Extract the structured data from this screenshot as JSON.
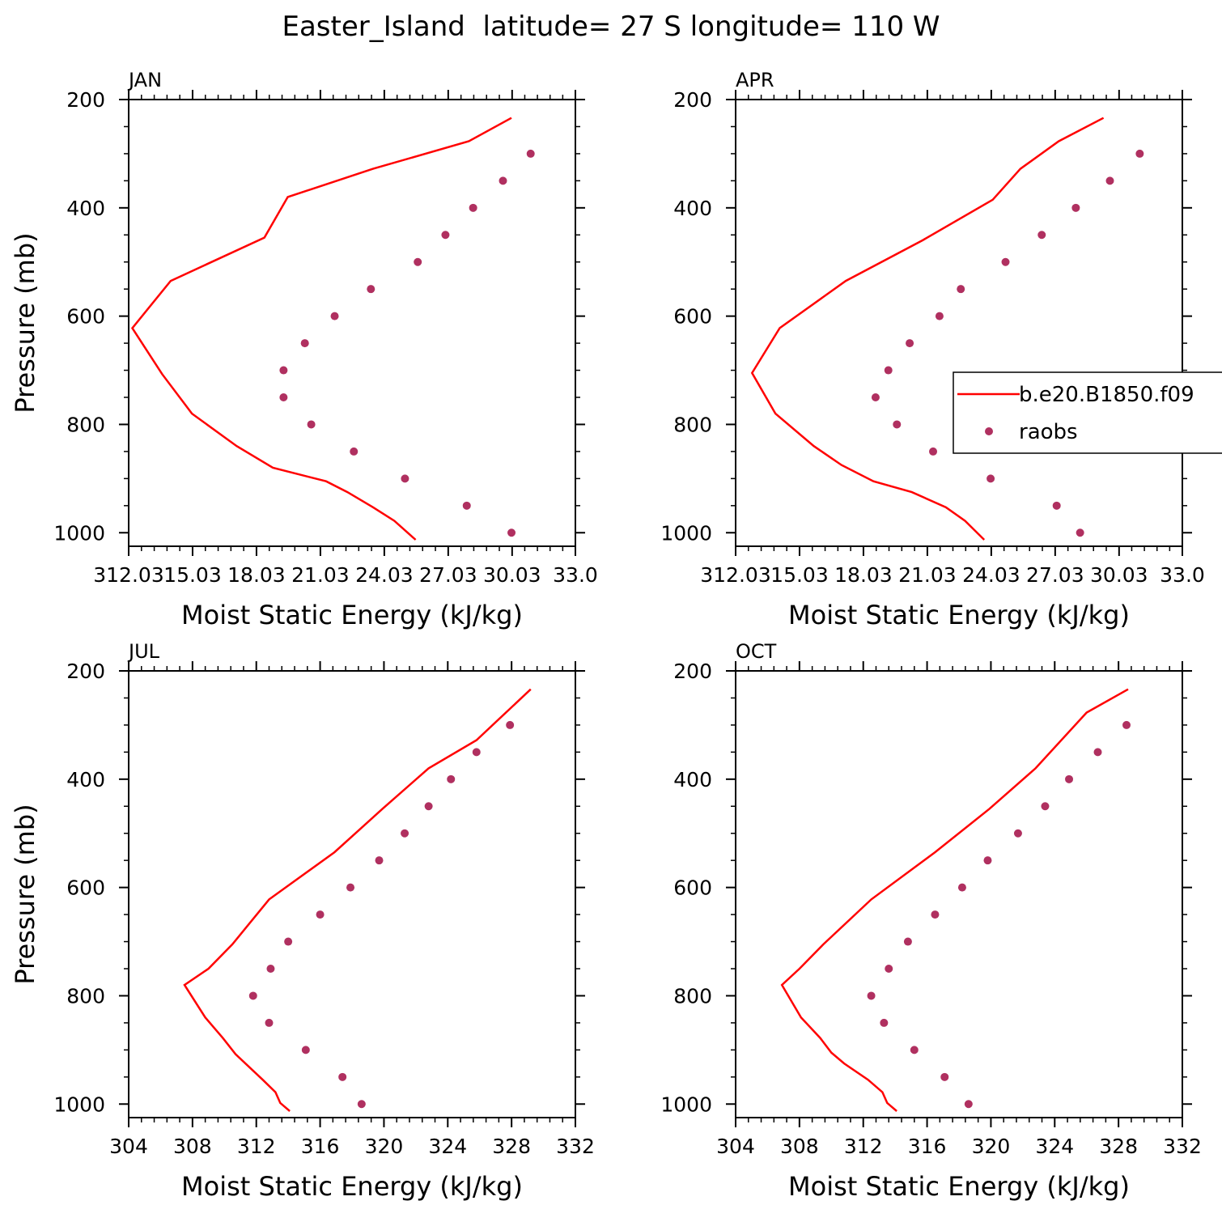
{
  "figure_title": "Easter_Island  latitude= 27 S longitude= 110 W",
  "legend": {
    "model_label": "b.e20.B1850.f09",
    "obs_label": "raobs",
    "line_color": "#ff0000",
    "marker_color": "#b03060"
  },
  "chart_data": [
    {
      "type": "line",
      "panel_title": "JAN",
      "xlabel": "Moist Static Energy (kJ/kg)",
      "ylabel": "Pressure (mb)",
      "xlim": [
        312.03,
        333.0
      ],
      "ylim": [
        1025,
        200
      ],
      "x_ticks": [
        312.03,
        315.03,
        318.03,
        321.03,
        324.03,
        327.03,
        330.03,
        333.0
      ],
      "x_tick_labels": [
        "312.03",
        "15.03",
        "18.03",
        "21.03",
        "24.03",
        "27.03",
        "30.03",
        "33.0"
      ],
      "y_ticks": [
        200,
        400,
        600,
        800,
        1000
      ],
      "y_tick_labels": [
        "200",
        "400",
        "600",
        "800",
        "1000"
      ],
      "series": [
        {
          "name": "b.e20.B1850.f09",
          "kind": "line",
          "x": [
            325.5,
            324.5,
            323.5,
            322.3,
            321.3,
            318.8,
            317.1,
            315.0,
            313.6,
            312.2,
            314.0,
            318.4,
            319.5,
            323.5,
            328.0,
            330.0
          ],
          "y": [
            1013,
            978,
            953,
            925,
            905,
            880,
            840,
            780,
            707,
            622,
            535,
            455,
            380,
            328,
            277,
            234
          ]
        },
        {
          "name": "raobs",
          "kind": "scatter",
          "x": [
            330.0,
            327.9,
            325.0,
            322.6,
            320.6,
            319.3,
            319.3,
            320.3,
            321.7,
            323.4,
            325.6,
            326.9,
            328.2,
            329.6,
            330.9
          ],
          "y": [
            1000,
            950,
            900,
            850,
            800,
            750,
            700,
            650,
            600,
            550,
            500,
            450,
            400,
            350,
            300
          ]
        }
      ]
    },
    {
      "type": "line",
      "panel_title": "APR",
      "xlabel": "Moist Static Energy (kJ/kg)",
      "ylabel": "",
      "xlim": [
        312.03,
        333.0
      ],
      "ylim": [
        1025,
        200
      ],
      "x_ticks": [
        312.03,
        315.03,
        318.03,
        321.03,
        324.03,
        327.03,
        330.03,
        333.0
      ],
      "x_tick_labels": [
        "312.03",
        "15.03",
        "18.03",
        "21.03",
        "24.03",
        "27.03",
        "30.03",
        "33.0"
      ],
      "y_ticks": [
        200,
        400,
        600,
        800,
        1000
      ],
      "y_tick_labels": [
        "200",
        "400",
        "600",
        "800",
        "1000"
      ],
      "series": [
        {
          "name": "b.e20.B1850.f09",
          "kind": "line",
          "x": [
            323.7,
            322.8,
            321.9,
            320.3,
            318.5,
            317.0,
            315.7,
            313.9,
            312.8,
            314.1,
            317.2,
            320.8,
            324.1,
            325.4,
            327.2,
            329.3
          ],
          "y": [
            1013,
            978,
            953,
            925,
            905,
            875,
            840,
            780,
            705,
            622,
            535,
            460,
            385,
            328,
            277,
            234
          ]
        },
        {
          "name": "raobs",
          "kind": "scatter",
          "x": [
            328.2,
            327.1,
            324.0,
            321.3,
            319.6,
            318.6,
            319.2,
            320.2,
            321.6,
            322.6,
            324.7,
            326.4,
            328.0,
            329.6,
            331.0
          ],
          "y": [
            1000,
            950,
            900,
            850,
            800,
            750,
            700,
            650,
            600,
            550,
            500,
            450,
            400,
            350,
            300
          ]
        }
      ]
    },
    {
      "type": "line",
      "panel_title": "JUL",
      "xlabel": "Moist Static Energy (kJ/kg)",
      "ylabel": "Pressure (mb)",
      "xlim": [
        304,
        332
      ],
      "ylim": [
        1025,
        200
      ],
      "x_ticks": [
        304,
        308,
        312,
        316,
        320,
        324,
        328,
        332
      ],
      "x_tick_labels": [
        "304",
        "308",
        "312",
        "316",
        "320",
        "324",
        "328",
        "332"
      ],
      "y_ticks": [
        200,
        400,
        600,
        800,
        1000
      ],
      "y_tick_labels": [
        "200",
        "400",
        "600",
        "800",
        "1000"
      ],
      "series": [
        {
          "name": "b.e20.B1850.f09",
          "kind": "line",
          "x": [
            314.1,
            313.5,
            313.2,
            312.4,
            310.7,
            309.9,
            308.8,
            307.5,
            309.0,
            310.5,
            312.8,
            316.9,
            319.9,
            322.8,
            325.8,
            329.2
          ],
          "y": [
            1013,
            998,
            978,
            955,
            908,
            878,
            840,
            780,
            750,
            705,
            622,
            535,
            455,
            380,
            328,
            234
          ]
        },
        {
          "name": "raobs",
          "kind": "scatter",
          "x": [
            318.6,
            317.4,
            315.1,
            312.8,
            311.8,
            312.9,
            314.0,
            316.0,
            317.9,
            319.7,
            321.3,
            322.8,
            324.2,
            325.8,
            327.9
          ],
          "y": [
            1000,
            950,
            900,
            850,
            800,
            750,
            700,
            650,
            600,
            550,
            500,
            450,
            400,
            350,
            300
          ]
        }
      ]
    },
    {
      "type": "line",
      "panel_title": "OCT",
      "xlabel": "Moist Static Energy (kJ/kg)",
      "ylabel": "",
      "xlim": [
        304,
        332
      ],
      "ylim": [
        1025,
        200
      ],
      "x_ticks": [
        304,
        308,
        312,
        316,
        320,
        324,
        328,
        332
      ],
      "x_tick_labels": [
        "304",
        "308",
        "312",
        "316",
        "320",
        "324",
        "328",
        "332"
      ],
      "y_ticks": [
        200,
        400,
        600,
        800,
        1000
      ],
      "y_tick_labels": [
        "200",
        "400",
        "600",
        "800",
        "1000"
      ],
      "series": [
        {
          "name": "b.e20.B1850.f09",
          "kind": "line",
          "x": [
            314.1,
            313.5,
            313.2,
            312.3,
            310.8,
            310.0,
            309.3,
            308.1,
            306.9,
            308.0,
            309.5,
            312.5,
            316.5,
            319.9,
            322.8,
            326.0,
            328.6
          ],
          "y": [
            1013,
            998,
            978,
            955,
            925,
            905,
            878,
            840,
            780,
            750,
            705,
            622,
            535,
            455,
            380,
            277,
            234
          ]
        },
        {
          "name": "raobs",
          "kind": "scatter",
          "x": [
            318.6,
            317.1,
            315.2,
            313.3,
            312.5,
            313.6,
            314.8,
            316.5,
            318.2,
            319.8,
            321.7,
            323.4,
            324.9,
            326.7,
            328.5
          ],
          "y": [
            1000,
            950,
            900,
            850,
            800,
            750,
            700,
            650,
            600,
            550,
            500,
            450,
            400,
            350,
            300
          ]
        }
      ]
    }
  ]
}
